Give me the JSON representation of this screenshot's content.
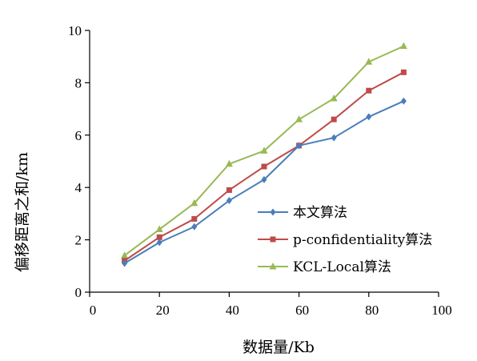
{
  "chart_data": {
    "type": "line",
    "xlabel": "数据量/Kb",
    "ylabel": "偏移距离之和/km",
    "xlim": [
      0,
      100
    ],
    "ylim": [
      0,
      10
    ],
    "xticks": [
      "0",
      "20",
      "40",
      "60",
      "80",
      "100"
    ],
    "yticks": [
      "0",
      "2",
      "4",
      "6",
      "8",
      "10"
    ],
    "grid": false,
    "legend_position": "bottom-right",
    "x": [
      10,
      20,
      30,
      40,
      50,
      60,
      70,
      80,
      90
    ],
    "series": [
      {
        "name": "本文算法",
        "color": "#4a7ebb",
        "marker": "diamond",
        "values": [
          1.1,
          1.9,
          2.5,
          3.5,
          4.3,
          5.6,
          5.9,
          6.7,
          7.3
        ]
      },
      {
        "name": "p-confidentiality算法",
        "color": "#be4b48",
        "marker": "square",
        "values": [
          1.2,
          2.1,
          2.8,
          3.9,
          4.8,
          5.6,
          6.6,
          7.7,
          8.4
        ]
      },
      {
        "name": "KCL-Local算法",
        "color": "#98b954",
        "marker": "triangle",
        "values": [
          1.4,
          2.4,
          3.4,
          4.9,
          5.4,
          6.6,
          7.4,
          8.8,
          9.4
        ]
      }
    ]
  }
}
